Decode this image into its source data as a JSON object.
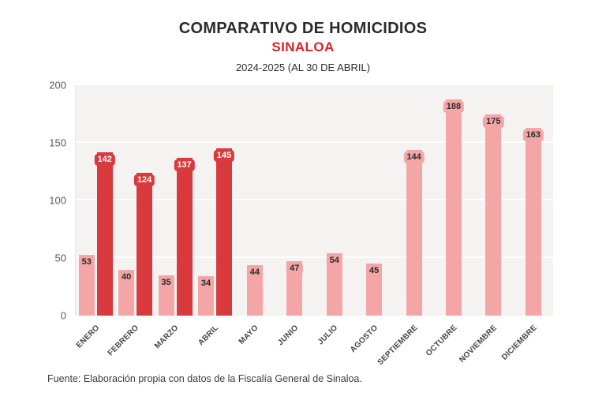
{
  "chart_data": {
    "type": "bar",
    "title": "COMPARATIVO DE HOMICIDIOS",
    "subtitle": "SINALOA",
    "caption": "2024-2025 (AL 30 DE ABRIL)",
    "categories": [
      "ENERO",
      "FEBRERO",
      "MARZO",
      "ABRIL",
      "MAYO",
      "JUNIO",
      "JULIO",
      "AGOSTO",
      "SEPTIEMBRE",
      "OCTUBRE",
      "NOVIEMBRE",
      "DICIEMBRE"
    ],
    "series": [
      {
        "name": "2024",
        "color": "#f4a6a7",
        "label_color": "#2b2b2b",
        "values": [
          53,
          40,
          35,
          34,
          44,
          47,
          54,
          45,
          144,
          188,
          175,
          163
        ]
      },
      {
        "name": "2025",
        "color": "#d93a3e",
        "label_color": "#ffffff",
        "values": [
          142,
          124,
          137,
          145,
          null,
          null,
          null,
          null,
          null,
          null,
          null,
          null
        ]
      }
    ],
    "ylim": [
      0,
      200
    ],
    "yticks": [
      0,
      50,
      100,
      150,
      200
    ],
    "grid": true,
    "legend": false,
    "plot_background": "#f5f3f2"
  },
  "footer": {
    "source": "Fuente: Elaboración propia con datos de la Fiscalía General de Sinaloa."
  },
  "colors": {
    "accent_red": "#de2127",
    "bar_2024": "#f4a6a7",
    "bar_2025": "#d93a3e",
    "title_text": "#2b2b2b",
    "axis_text": "#5a5a5a"
  }
}
